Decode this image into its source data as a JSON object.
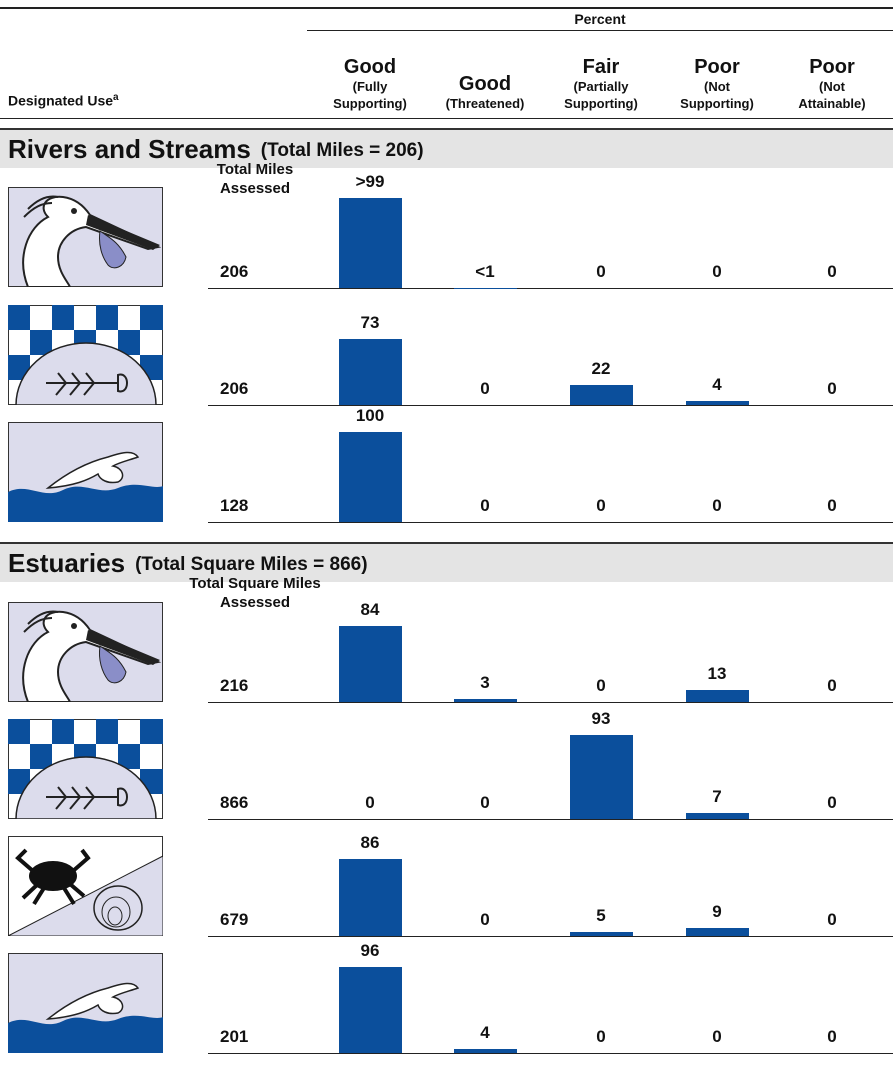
{
  "chart_data": {
    "type": "bar",
    "header_group": "Percent",
    "row_header": "Designated Use",
    "row_header_note": "a",
    "color": "#0b4f9c",
    "columns": [
      {
        "main": "Good",
        "sub": "(Fully Supporting)"
      },
      {
        "main": "Good",
        "sub": "(Threatened)"
      },
      {
        "main": "Fair",
        "sub": "(Partially Supporting)"
      },
      {
        "main": "Poor",
        "sub": "(Not Supporting)"
      },
      {
        "main": "Poor",
        "sub": "(Not Attainable)"
      }
    ],
    "sections": [
      {
        "title": "Rivers and Streams",
        "subtitle": "(Total Miles = 206)",
        "total_label": "Total Miles Assessed",
        "rows": [
          {
            "total": 206,
            "values": [
              99.9,
              0.5,
              0,
              0,
              0
            ],
            "value_labels": [
              ">99",
              "<1",
              "0",
              "0",
              "0"
            ]
          },
          {
            "total": 206,
            "values": [
              73,
              0,
              22,
              4,
              0
            ]
          },
          {
            "total": 128,
            "values": [
              100,
              0,
              0,
              0,
              0
            ]
          }
        ]
      },
      {
        "title": "Estuaries",
        "subtitle": "(Total Square Miles = 866)",
        "total_label": "Total Square Miles Assessed",
        "rows": [
          {
            "total": 216,
            "values": [
              84,
              3,
              0,
              13,
              0
            ]
          },
          {
            "total": 866,
            "values": [
              0,
              0,
              93,
              7,
              0
            ]
          },
          {
            "total": 679,
            "values": [
              86,
              0,
              5,
              9,
              0
            ]
          },
          {
            "total": 201,
            "values": [
              96,
              4,
              0,
              0,
              0
            ]
          }
        ]
      }
    ]
  }
}
